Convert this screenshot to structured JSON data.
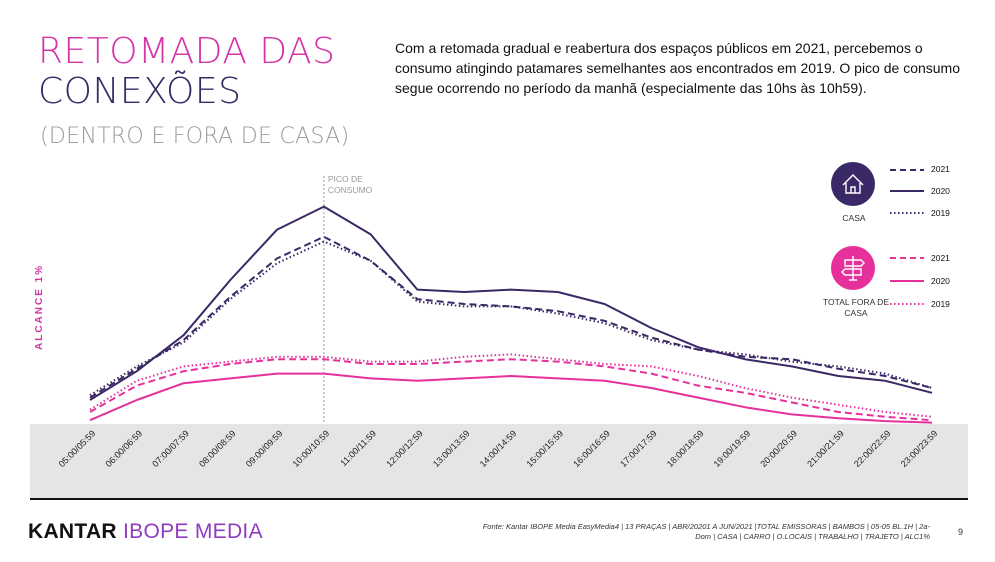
{
  "page": {
    "title_line1": "RETOMADA DAS",
    "title_line2": "CONEXÕES",
    "subtitle": "(DENTRO E FORA DE CASA)",
    "intro": "Com a retomada gradual e reabertura dos espaços públicos em 2021, percebemos o consumo atingindo patamares semelhantes aos encontrados em 2019. O pico de consumo segue ocorrendo no período da manhã (especialmente das 10hs às 10h59).",
    "source": "Fonte: Kantar IBOPE Media EasyMedia4 | 13 PRAÇAS | ABR/20201 A JUN/2021 |TOTAL EMISSORAS | BAMBOS | 05-05 BL.1H | 2a-Dom | CASA | CARRO | O.LOCAIS | TRABALHO | TRAJETO | ALC1%",
    "page_number": "9",
    "logo_kantar": "KANTAR",
    "logo_ibope": "IBOPE MEDIA"
  },
  "legend": {
    "casa_label": "CASA",
    "fora_label": "TOTAL FORA DE CASA",
    "years": [
      "2021",
      "2020",
      "2019"
    ]
  },
  "colors": {
    "casa": "#3b2866",
    "fora": "#e6309c",
    "title_pink": "#d534a9"
  },
  "chart_data": {
    "type": "line",
    "ylabel": "ALCANCE 1%",
    "annotation": "PICO DE CONSUMO",
    "annotation_category": "10:00/10:59",
    "categories": [
      "05:00/05:59",
      "06:00/06:59",
      "07:00/07:59",
      "08:00/08:59",
      "09:00/09:59",
      "10:00/10:59",
      "11:00/11:59",
      "12:00/12:59",
      "13:00/13:59",
      "14:00/14:59",
      "15:00/15:59",
      "16:00/16:59",
      "17:00/17:59",
      "18:00/18:59",
      "19:00/19:59",
      "20:00/20:59",
      "21:00/21:59",
      "22:00/22:59",
      "23:00/23:59"
    ],
    "ylim": [
      0,
      42
    ],
    "series": [
      {
        "name": "2021",
        "group": "CASA",
        "style": "dashed",
        "values": [
          5.5,
          11.5,
          17.5,
          26.5,
          34.5,
          39.0,
          34.0,
          26.0,
          25.0,
          24.5,
          23.5,
          21.5,
          18.0,
          15.5,
          14.0,
          13.5,
          11.5,
          10.0,
          7.5
        ]
      },
      {
        "name": "2020",
        "group": "CASA",
        "style": "solid",
        "values": [
          5.0,
          11.0,
          18.5,
          30.0,
          40.5,
          45.3,
          39.5,
          28.0,
          27.5,
          28.0,
          27.5,
          25.0,
          20.0,
          16.0,
          13.5,
          12.0,
          10.0,
          9.0,
          6.5
        ]
      },
      {
        "name": "2019",
        "group": "CASA",
        "style": "dotted",
        "values": [
          6.0,
          12.0,
          17.0,
          26.0,
          33.5,
          38.0,
          34.0,
          25.5,
          24.5,
          24.5,
          23.0,
          21.0,
          17.5,
          15.5,
          14.5,
          13.0,
          12.0,
          10.5,
          7.5
        ]
      },
      {
        "name": "2021",
        "group": "TOTAL FORA DE CASA",
        "style": "dashed",
        "values": [
          2.5,
          8.0,
          11.0,
          12.5,
          13.5,
          13.5,
          12.5,
          12.5,
          13.0,
          13.5,
          13.0,
          12.0,
          10.5,
          8.0,
          6.5,
          4.5,
          2.5,
          1.5,
          0.8
        ]
      },
      {
        "name": "2020",
        "group": "TOTAL FORA DE CASA",
        "style": "solid",
        "values": [
          0.8,
          5.0,
          8.5,
          9.5,
          10.5,
          10.5,
          9.5,
          9.0,
          9.5,
          10.0,
          9.5,
          9.0,
          7.5,
          5.5,
          3.5,
          2.0,
          1.2,
          0.6,
          0.3
        ]
      },
      {
        "name": "2019",
        "group": "TOTAL FORA DE CASA",
        "style": "dotted",
        "values": [
          3.0,
          9.0,
          12.0,
          13.0,
          14.0,
          14.0,
          13.0,
          13.0,
          14.0,
          14.5,
          13.5,
          12.5,
          12.0,
          10.0,
          7.5,
          5.5,
          4.0,
          2.5,
          1.5
        ]
      }
    ]
  }
}
